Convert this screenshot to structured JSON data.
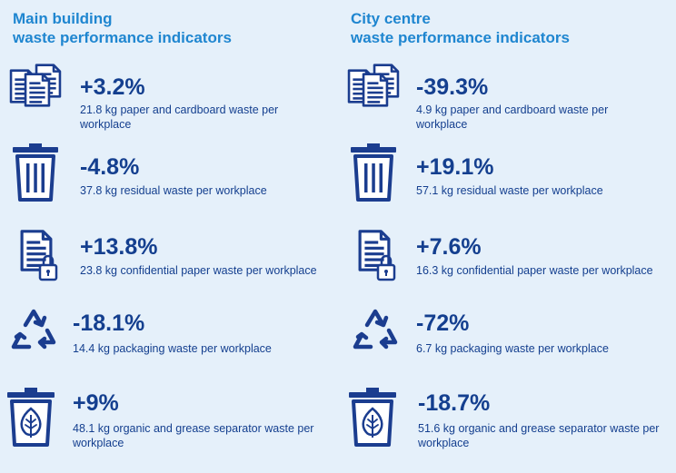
{
  "colors": {
    "title": "#1f86d0",
    "text": "#143f8f",
    "icon": "#1b3d8f",
    "background": "#e5f0fa"
  },
  "columns": [
    {
      "title_line1": "Main building",
      "title_line2": "waste performance indicators",
      "items": [
        {
          "icon": "paper-stack-icon",
          "value": "+3.2%",
          "desc": "21.8 kg paper and cardboard waste per workplace"
        },
        {
          "icon": "trash-bin-icon",
          "value": "-4.8%",
          "desc": "37.8 kg residual waste per workplace"
        },
        {
          "icon": "confidential-document-icon",
          "value": "+13.8%",
          "desc": "23.8 kg confidential paper waste per workplace"
        },
        {
          "icon": "recycle-icon",
          "value": "-18.1%",
          "desc": "14.4 kg packaging waste per workplace"
        },
        {
          "icon": "organic-bin-icon",
          "value": "+9%",
          "desc": "48.1 kg organic and grease separator waste per workplace"
        }
      ]
    },
    {
      "title_line1": "City centre",
      "title_line2": "waste performance indicators",
      "items": [
        {
          "icon": "paper-stack-icon",
          "value": "-39.3%",
          "desc": "4.9 kg paper and cardboard waste per workplace"
        },
        {
          "icon": "trash-bin-icon",
          "value": "+19.1%",
          "desc": "57.1 kg residual waste per workplace"
        },
        {
          "icon": "confidential-document-icon",
          "value": "+7.6%",
          "desc": "16.3 kg confidential paper waste per workplace"
        },
        {
          "icon": "recycle-icon",
          "value": "-72%",
          "desc": "6.7 kg packaging waste per workplace"
        },
        {
          "icon": "organic-bin-icon",
          "value": "-18.7%",
          "desc": "51.6 kg organic and grease separator waste per workplace"
        }
      ]
    }
  ]
}
